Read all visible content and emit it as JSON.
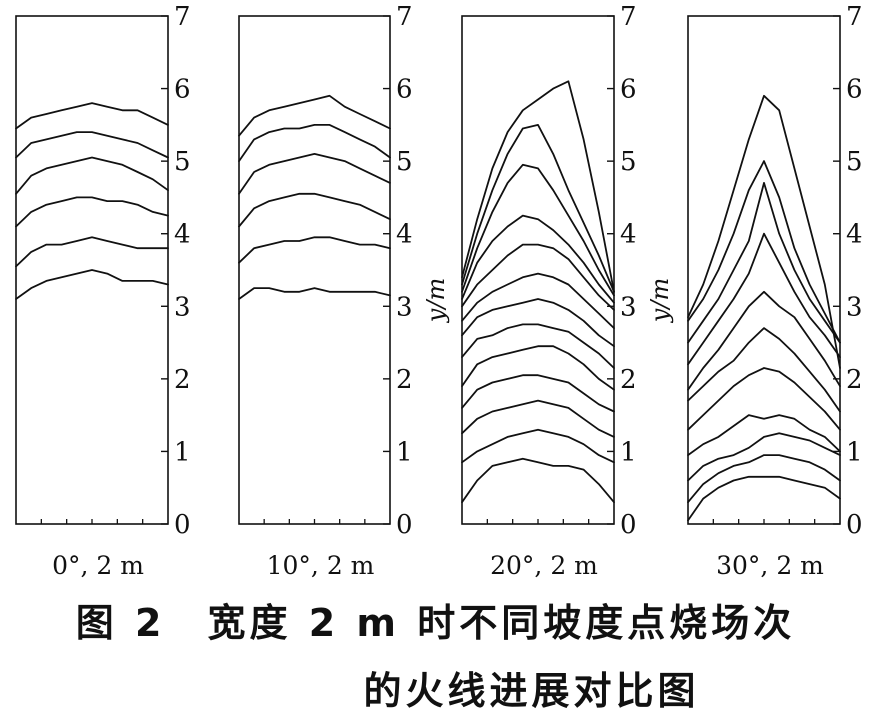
{
  "chart_data": [
    {
      "type": "line",
      "panel_label": "0°, 2 m",
      "ylim": [
        0,
        7
      ],
      "yticks": [
        "0",
        "1",
        "2",
        "3",
        "4",
        "5",
        "6",
        "7"
      ],
      "ylabel": "",
      "x": [
        0,
        0.1,
        0.2,
        0.3,
        0.4,
        0.5,
        0.6,
        0.7,
        0.8,
        0.9,
        1.0
      ],
      "series": [
        {
          "values": [
            3.1,
            3.25,
            3.35,
            3.4,
            3.45,
            3.5,
            3.45,
            3.35,
            3.35,
            3.35,
            3.3
          ]
        },
        {
          "values": [
            3.55,
            3.75,
            3.85,
            3.85,
            3.9,
            3.95,
            3.9,
            3.85,
            3.8,
            3.8,
            3.8
          ]
        },
        {
          "values": [
            4.1,
            4.3,
            4.4,
            4.45,
            4.5,
            4.5,
            4.45,
            4.45,
            4.4,
            4.3,
            4.25
          ]
        },
        {
          "values": [
            4.55,
            4.8,
            4.9,
            4.95,
            5.0,
            5.05,
            5.0,
            4.95,
            4.85,
            4.75,
            4.6
          ]
        },
        {
          "values": [
            5.05,
            5.25,
            5.3,
            5.35,
            5.4,
            5.4,
            5.35,
            5.3,
            5.25,
            5.15,
            5.05
          ]
        },
        {
          "values": [
            5.45,
            5.6,
            5.65,
            5.7,
            5.75,
            5.8,
            5.75,
            5.7,
            5.7,
            5.6,
            5.5
          ]
        }
      ]
    },
    {
      "type": "line",
      "panel_label": "10°, 2 m",
      "ylim": [
        0,
        7
      ],
      "yticks": [
        "0",
        "1",
        "2",
        "3",
        "4",
        "5",
        "6",
        "7"
      ],
      "ylabel": "y/m",
      "x": [
        0,
        0.1,
        0.2,
        0.3,
        0.4,
        0.5,
        0.6,
        0.7,
        0.8,
        0.9,
        1.0
      ],
      "series": [
        {
          "values": [
            3.1,
            3.25,
            3.25,
            3.2,
            3.2,
            3.25,
            3.2,
            3.2,
            3.2,
            3.2,
            3.15
          ]
        },
        {
          "values": [
            3.6,
            3.8,
            3.85,
            3.9,
            3.9,
            3.95,
            3.95,
            3.9,
            3.85,
            3.85,
            3.8
          ]
        },
        {
          "values": [
            4.1,
            4.35,
            4.45,
            4.5,
            4.55,
            4.55,
            4.5,
            4.45,
            4.4,
            4.3,
            4.2
          ]
        },
        {
          "values": [
            4.55,
            4.85,
            4.95,
            5.0,
            5.05,
            5.1,
            5.05,
            5.0,
            4.9,
            4.8,
            4.7
          ]
        },
        {
          "values": [
            5.0,
            5.3,
            5.4,
            5.45,
            5.45,
            5.5,
            5.5,
            5.4,
            5.3,
            5.2,
            5.05
          ]
        },
        {
          "values": [
            5.35,
            5.6,
            5.7,
            5.75,
            5.8,
            5.85,
            5.9,
            5.75,
            5.65,
            5.55,
            5.45
          ]
        }
      ]
    },
    {
      "type": "line",
      "panel_label": "20°, 2 m",
      "ylim": [
        0,
        7
      ],
      "yticks": [
        "0",
        "1",
        "2",
        "3",
        "4",
        "5",
        "6",
        "7"
      ],
      "ylabel": "y/m",
      "x": [
        0,
        0.1,
        0.2,
        0.3,
        0.4,
        0.5,
        0.6,
        0.7,
        0.8,
        0.9,
        1.0
      ],
      "series": [
        {
          "values": [
            0.3,
            0.6,
            0.8,
            0.85,
            0.9,
            0.85,
            0.8,
            0.8,
            0.75,
            0.55,
            0.3
          ]
        },
        {
          "values": [
            0.85,
            1.0,
            1.1,
            1.2,
            1.25,
            1.3,
            1.25,
            1.2,
            1.1,
            0.95,
            0.85
          ]
        },
        {
          "values": [
            1.25,
            1.45,
            1.55,
            1.6,
            1.65,
            1.7,
            1.65,
            1.6,
            1.45,
            1.3,
            1.2
          ]
        },
        {
          "values": [
            1.6,
            1.85,
            1.95,
            2.0,
            2.05,
            2.05,
            2.0,
            1.95,
            1.8,
            1.65,
            1.55
          ]
        },
        {
          "values": [
            1.9,
            2.2,
            2.3,
            2.35,
            2.4,
            2.45,
            2.45,
            2.35,
            2.2,
            2.0,
            1.85
          ]
        },
        {
          "values": [
            2.3,
            2.55,
            2.6,
            2.7,
            2.75,
            2.75,
            2.7,
            2.65,
            2.5,
            2.35,
            2.15
          ]
        },
        {
          "values": [
            2.6,
            2.85,
            2.95,
            3.0,
            3.05,
            3.1,
            3.05,
            2.95,
            2.8,
            2.6,
            2.45
          ]
        },
        {
          "values": [
            2.8,
            3.05,
            3.2,
            3.3,
            3.4,
            3.45,
            3.4,
            3.3,
            3.1,
            2.9,
            2.7
          ]
        },
        {
          "values": [
            3.0,
            3.3,
            3.5,
            3.7,
            3.85,
            3.85,
            3.8,
            3.65,
            3.4,
            3.15,
            2.95
          ]
        },
        {
          "values": [
            3.1,
            3.6,
            3.9,
            4.1,
            4.25,
            4.2,
            4.05,
            3.85,
            3.6,
            3.3,
            3.05
          ]
        },
        {
          "values": [
            3.2,
            3.8,
            4.3,
            4.7,
            4.95,
            4.9,
            4.6,
            4.25,
            3.9,
            3.5,
            3.15
          ]
        },
        {
          "values": [
            3.3,
            4.0,
            4.6,
            5.1,
            5.45,
            5.5,
            5.1,
            4.6,
            4.15,
            3.7,
            3.2
          ]
        },
        {
          "values": [
            3.4,
            4.2,
            4.9,
            5.4,
            5.7,
            5.85,
            6.0,
            6.1,
            5.3,
            4.3,
            3.2
          ]
        }
      ]
    },
    {
      "type": "line",
      "panel_label": "30°, 2 m",
      "ylim": [
        0,
        7
      ],
      "yticks": [
        "0",
        "1",
        "2",
        "3",
        "4",
        "5",
        "6",
        "7"
      ],
      "ylabel": "",
      "x": [
        0,
        0.1,
        0.2,
        0.3,
        0.4,
        0.5,
        0.6,
        0.7,
        0.8,
        0.9,
        1.0
      ],
      "series": [
        {
          "values": [
            0.05,
            0.35,
            0.5,
            0.6,
            0.65,
            0.65,
            0.65,
            0.6,
            0.55,
            0.5,
            0.35
          ]
        },
        {
          "values": [
            0.3,
            0.55,
            0.7,
            0.8,
            0.85,
            0.95,
            0.95,
            0.9,
            0.85,
            0.75,
            0.6
          ]
        },
        {
          "values": [
            0.6,
            0.8,
            0.9,
            0.95,
            1.05,
            1.2,
            1.25,
            1.2,
            1.15,
            1.05,
            0.95
          ]
        },
        {
          "values": [
            0.95,
            1.1,
            1.2,
            1.35,
            1.5,
            1.45,
            1.5,
            1.45,
            1.3,
            1.2,
            1.0
          ]
        },
        {
          "values": [
            1.3,
            1.5,
            1.7,
            1.9,
            2.05,
            2.15,
            2.1,
            1.95,
            1.75,
            1.55,
            1.3
          ]
        },
        {
          "values": [
            1.7,
            1.9,
            2.1,
            2.25,
            2.5,
            2.7,
            2.55,
            2.35,
            2.1,
            1.85,
            1.55
          ]
        },
        {
          "values": [
            1.85,
            2.15,
            2.4,
            2.7,
            3.0,
            3.2,
            3.0,
            2.85,
            2.55,
            2.25,
            1.9
          ]
        },
        {
          "values": [
            2.2,
            2.5,
            2.8,
            3.1,
            3.45,
            4.0,
            3.6,
            3.2,
            2.85,
            2.6,
            2.3
          ]
        },
        {
          "values": [
            2.5,
            2.8,
            3.1,
            3.5,
            3.9,
            4.7,
            4.0,
            3.5,
            3.1,
            2.8,
            2.5
          ]
        },
        {
          "values": [
            2.8,
            3.1,
            3.5,
            4.0,
            4.6,
            5.0,
            4.5,
            3.8,
            3.3,
            2.9,
            2.5
          ]
        },
        {
          "values": [
            2.85,
            3.3,
            3.9,
            4.6,
            5.3,
            5.9,
            5.7,
            4.9,
            4.1,
            3.3,
            2.15
          ]
        }
      ]
    }
  ],
  "caption": {
    "line1": "图 2　宽度 2 m 时不同坡度点烧场次",
    "line2": "的火线进展对比图"
  }
}
